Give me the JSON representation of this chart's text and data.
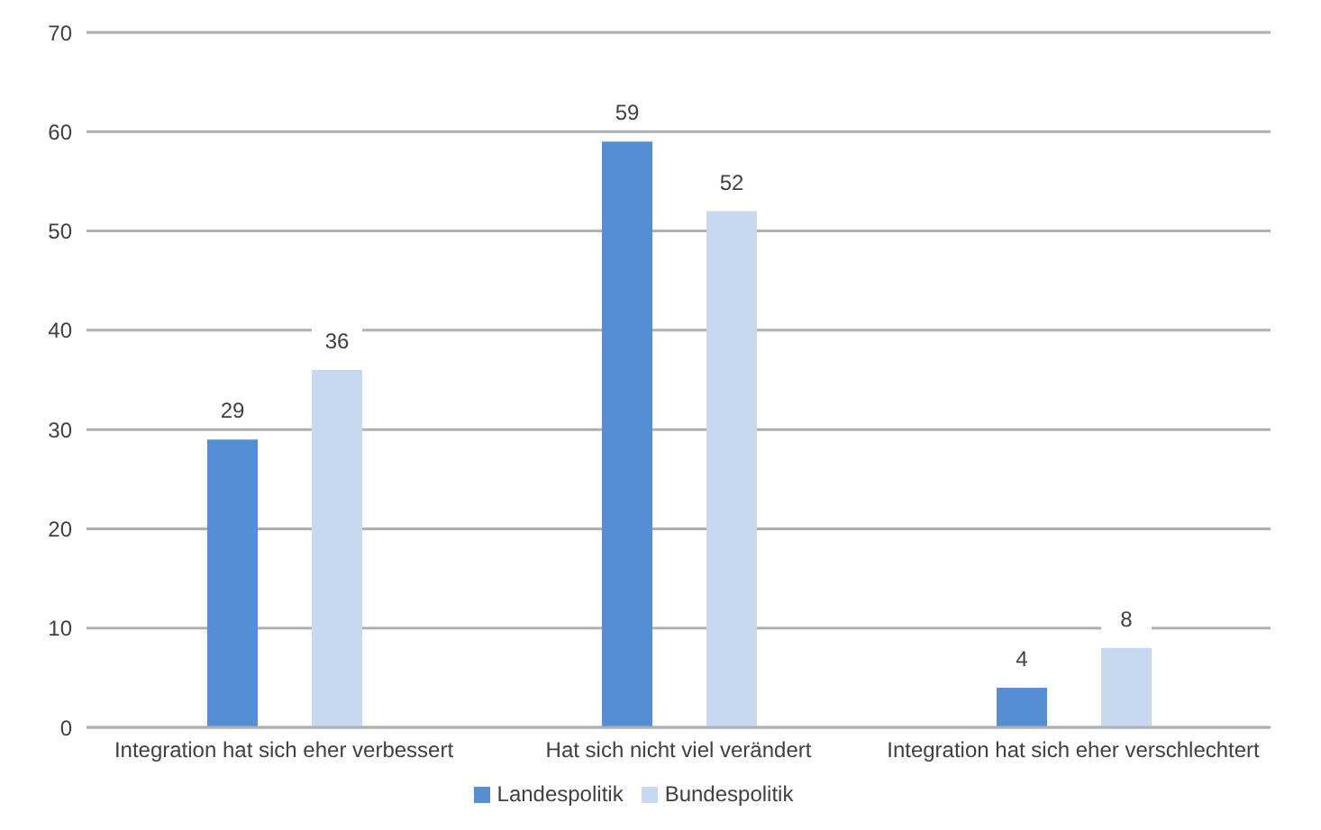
{
  "chart_data": {
    "type": "bar",
    "categories": [
      "Integration hat sich eher verbessert",
      "Hat sich nicht viel verändert",
      "Integration hat sich eher verschlechtert"
    ],
    "series": [
      {
        "name": "Landespolitik",
        "color": "#558ed5",
        "values": [
          29,
          59,
          4
        ]
      },
      {
        "name": "Bundespolitik",
        "color": "#c6d9f1",
        "values": [
          36,
          52,
          8
        ]
      }
    ],
    "ylim": [
      0,
      70
    ],
    "yticks": [
      0,
      10,
      20,
      30,
      40,
      50,
      60,
      70
    ],
    "grid": "y",
    "legend": "bottom",
    "data_labels": true
  }
}
